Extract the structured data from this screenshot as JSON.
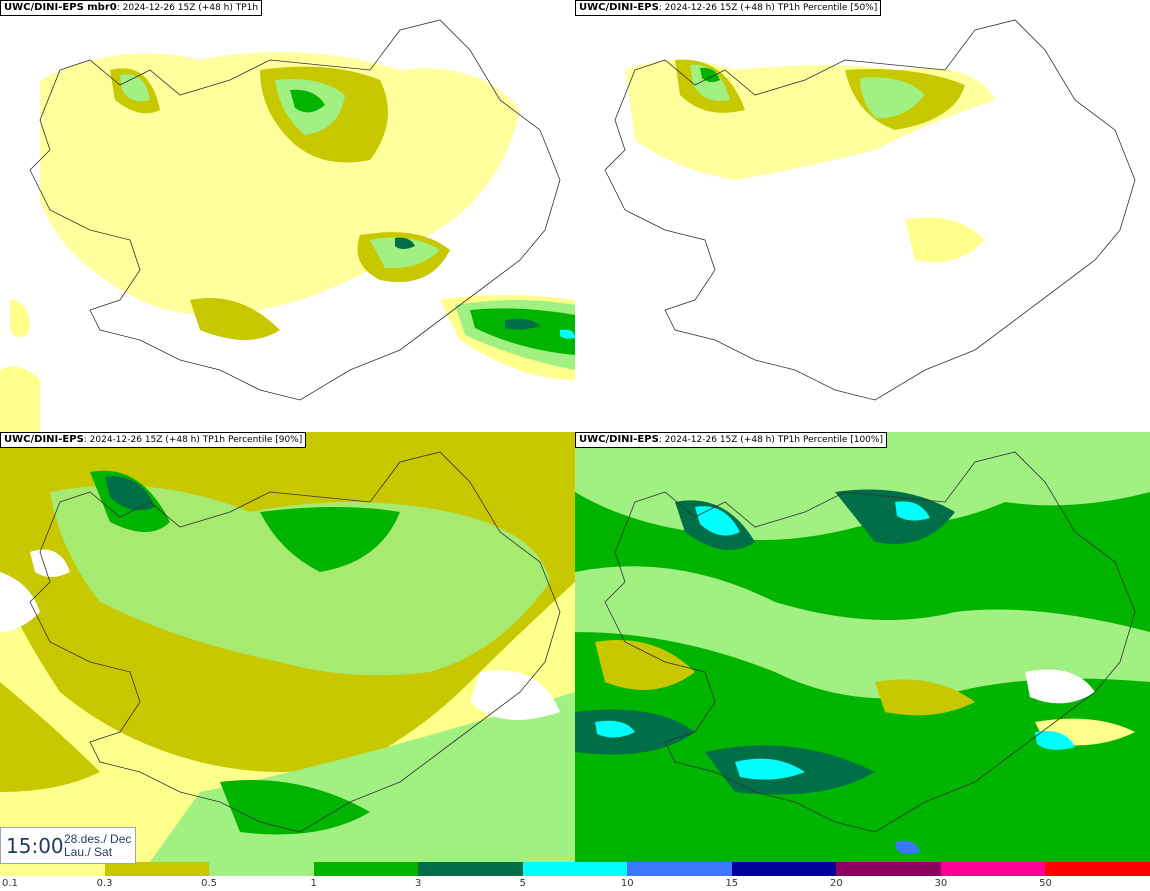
{
  "panels": [
    {
      "model": "UWC/DINI-EPS mbr0",
      "info": ": 2024-12-26 15Z (+48 h) TP1h"
    },
    {
      "model": "UWC/DINI-EPS",
      "info": ": 2024-12-26 15Z (+48 h) TP1h Percentile [50%]"
    },
    {
      "model": "UWC/DINI-EPS",
      "info": ": 2024-12-26 15Z (+48 h) TP1h Percentile [90%]"
    },
    {
      "model": "UWC/DINI-EPS",
      "info": ": 2024-12-26 15Z (+48 h) TP1h Percentile [100%]"
    }
  ],
  "time": {
    "clock": "15:00",
    "date_line1": "28.des./ Dec",
    "date_line2": "Lau./ Sat"
  },
  "legend": {
    "labels": [
      "0.1",
      "0.3",
      "0.5",
      "1",
      "3",
      "5",
      "10",
      "15",
      "20",
      "30",
      "50"
    ],
    "colors": [
      "#ffff8c",
      "#c8c800",
      "#a0f082",
      "#00b400",
      "#006e46",
      "#00ffff",
      "#3c78ff",
      "#000096",
      "#8c0064",
      "#ff0096",
      "#ff0000"
    ]
  },
  "colors": {
    "p01": "#ffff8c",
    "p03": "#c8c800",
    "p05": "#a0f082",
    "p1": "#00b400",
    "p3": "#006e46",
    "p5": "#00ffff"
  }
}
